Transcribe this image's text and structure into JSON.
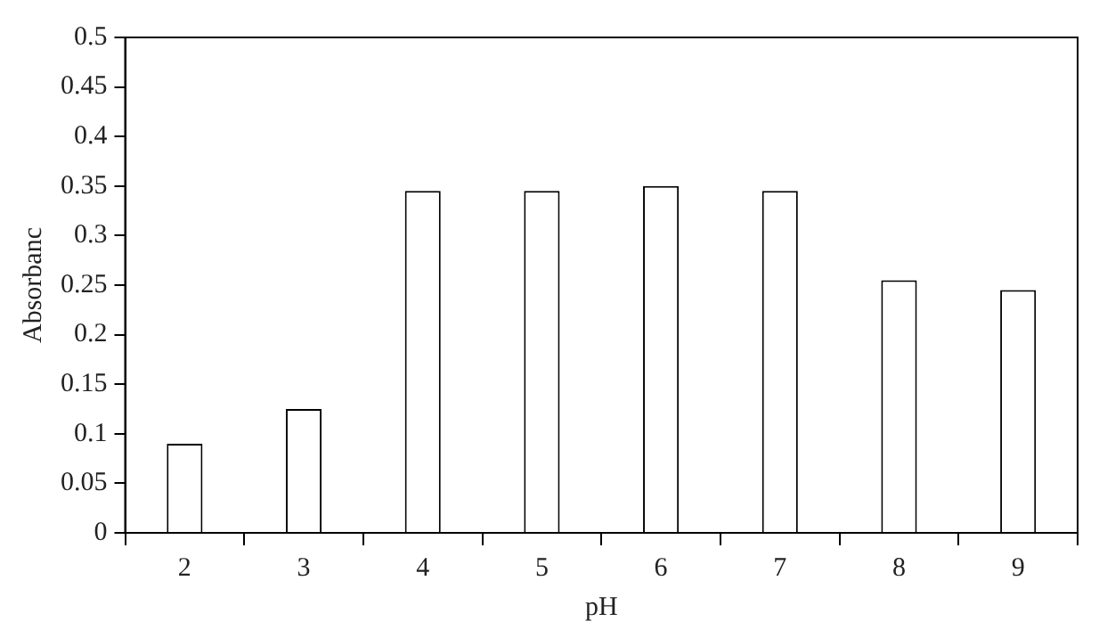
{
  "chart_data": {
    "type": "bar",
    "xlabel": "pH",
    "ylabel": "Absorbanc",
    "categories": [
      "2",
      "3",
      "4",
      "5",
      "6",
      "7",
      "8",
      "9"
    ],
    "values": [
      0.09,
      0.125,
      0.345,
      0.345,
      0.35,
      0.345,
      0.255,
      0.245
    ],
    "color": "#ffffff",
    "ylim": [
      0,
      0.5
    ],
    "yticks": [
      0,
      0.05,
      0.1,
      0.15,
      0.2,
      0.25,
      0.3,
      0.35,
      0.4,
      0.45,
      0.5
    ],
    "grid": false,
    "legend": false
  }
}
